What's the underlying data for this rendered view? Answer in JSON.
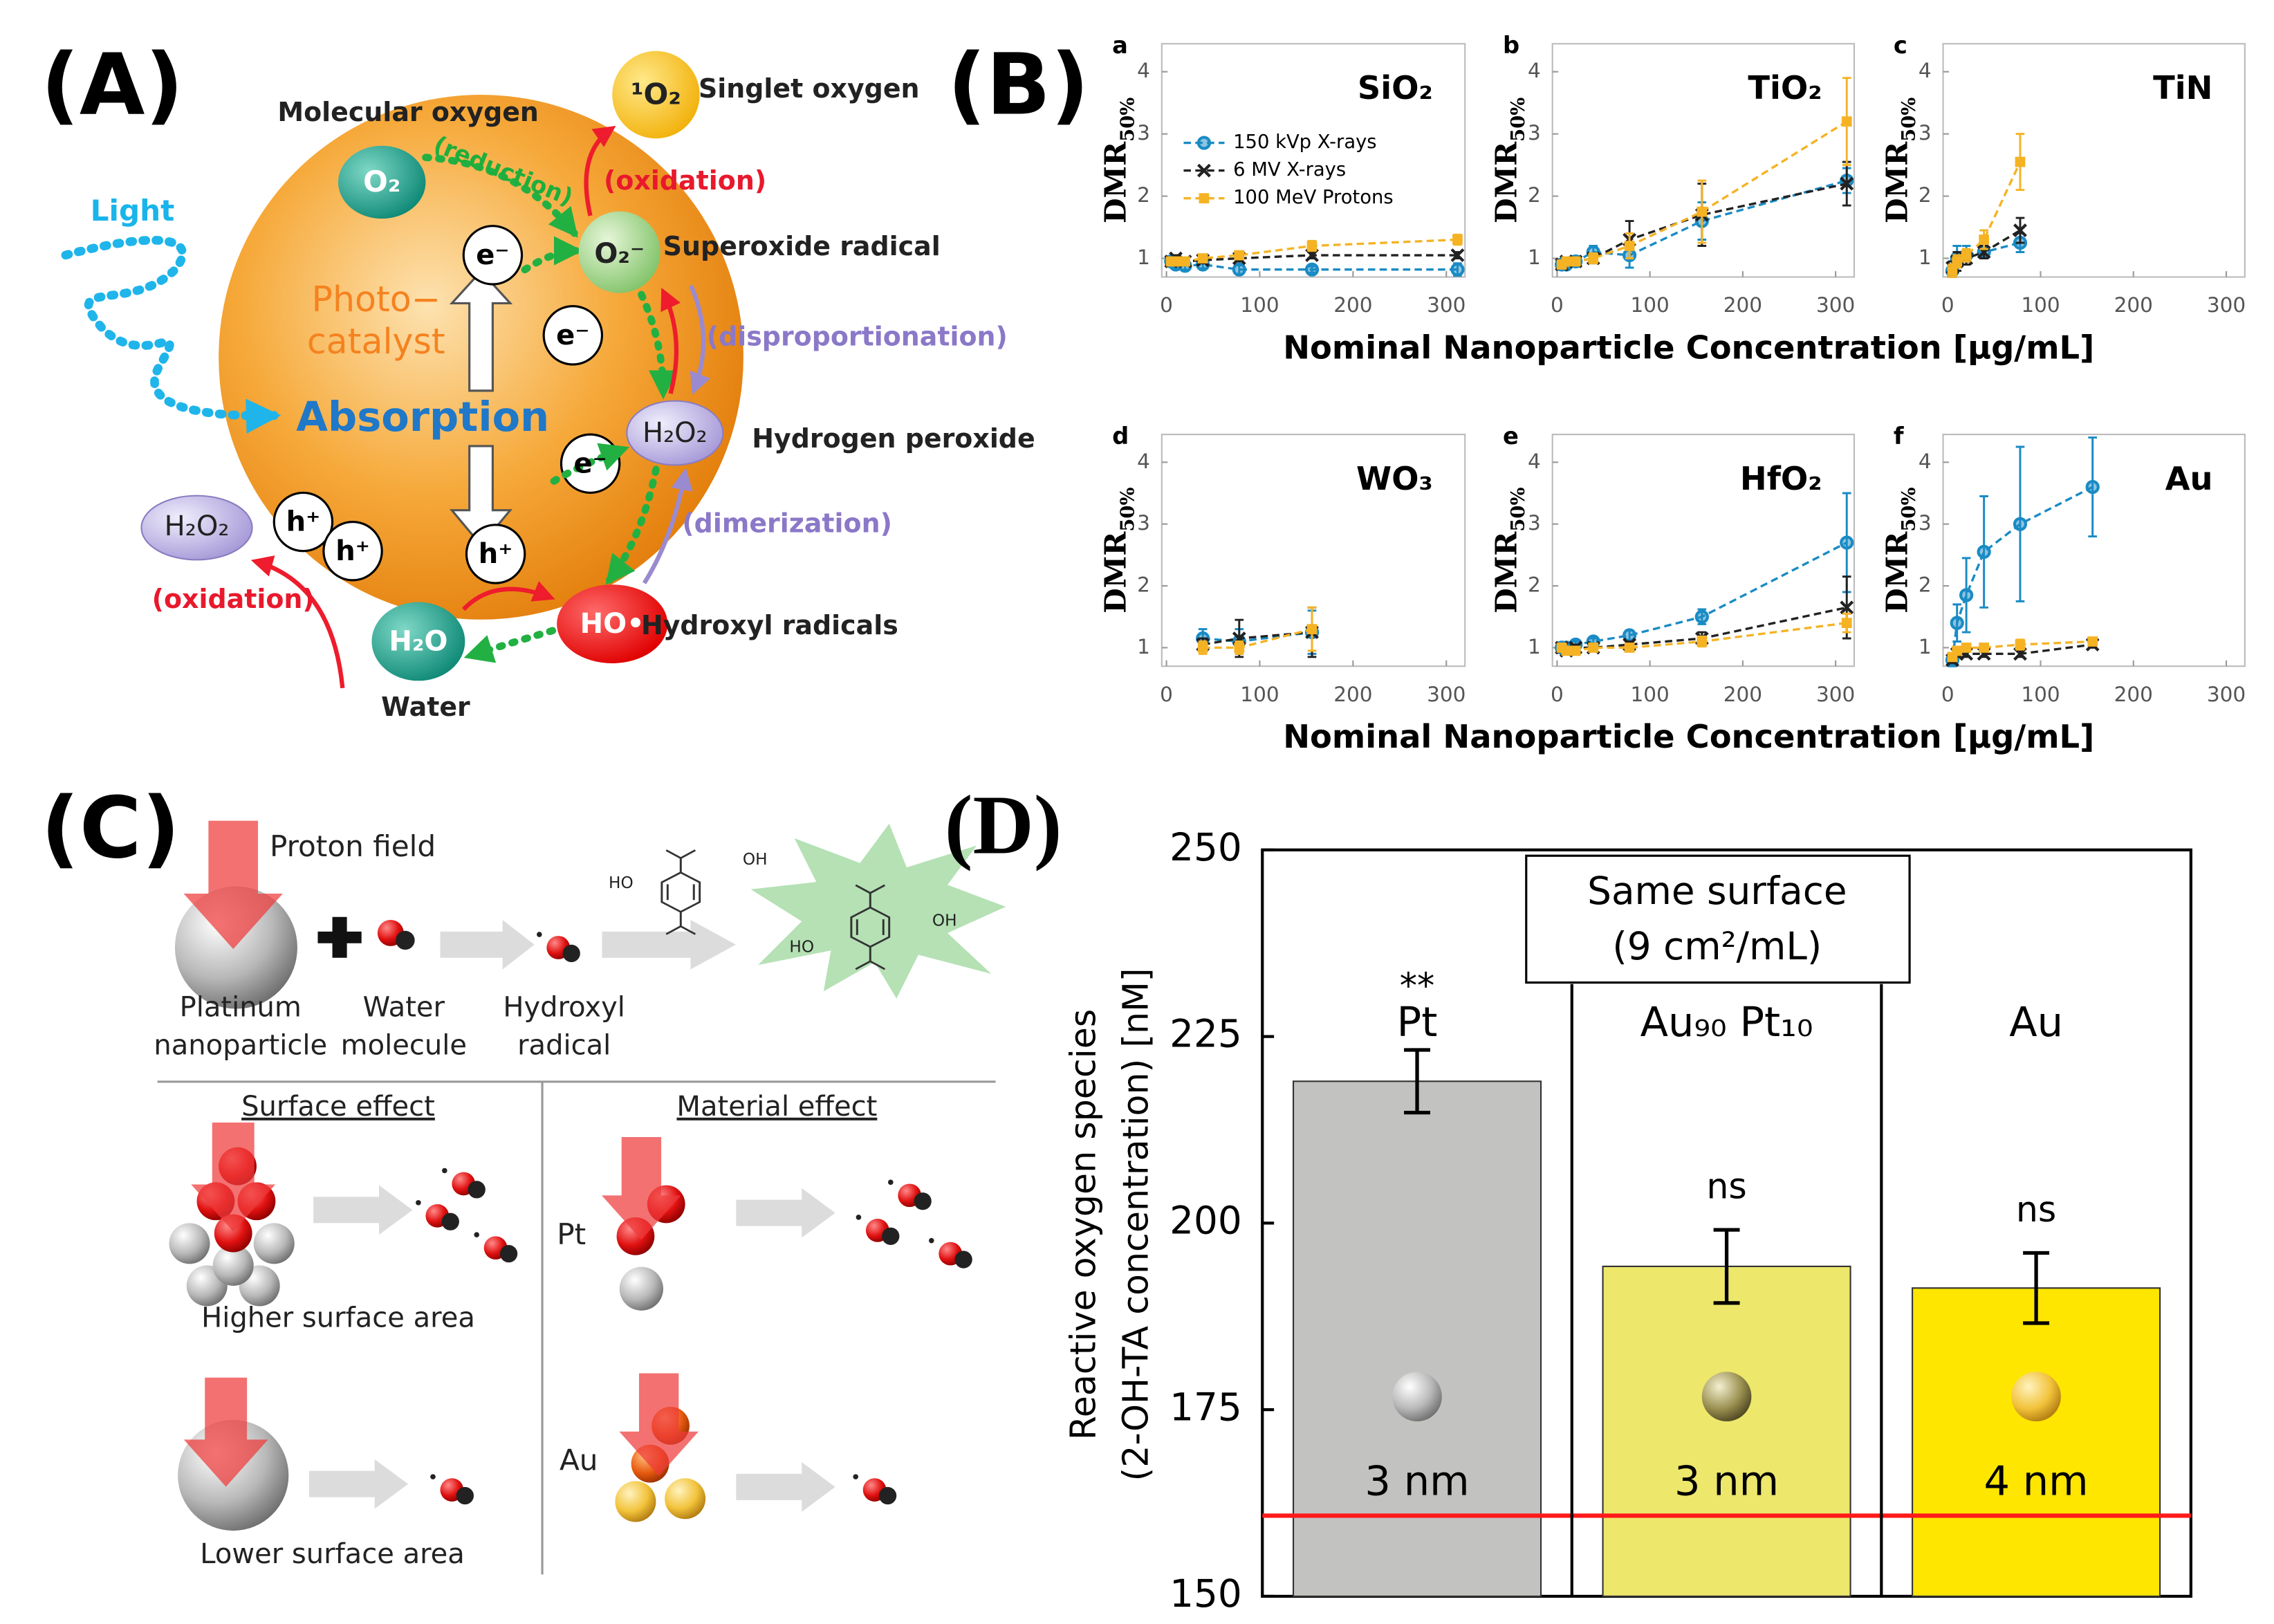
{
  "figure": {
    "panel_a": {
      "label": "(A)",
      "light": "Light",
      "photocatalyst_1": "Photo−",
      "photocatalyst_2": "catalyst",
      "absorption": "Absorption",
      "molecular_oxygen": "Molecular oxygen",
      "o2": "O₂",
      "reduction": "(reduction)",
      "singlet_o2": "¹O₂",
      "singlet_oxygen": "Singlet oxygen",
      "oxidation_1": "(oxidation)",
      "superoxide": "O₂⁻",
      "superoxide_radical": "Superoxide radical",
      "disproportionation": "(disproportionation)",
      "h2o2_1": "H₂O₂",
      "hydrogen_peroxide": "Hydrogen peroxide",
      "dimerization": "(dimerization)",
      "ho": "HO•",
      "hydroxyl_radicals": "Hydroxyl radicals",
      "h2o": "H₂O",
      "water": "Water",
      "h2o2_2": "H₂O₂",
      "oxidation_2": "(oxidation)",
      "electrons": [
        "e⁻",
        "e⁻",
        "e⁻"
      ],
      "holes": [
        "h⁺",
        "h⁺",
        "h⁺"
      ]
    },
    "panel_b": {
      "label": "(B)"
    },
    "panel_c": {
      "label": "(C)",
      "proton_field": "Proton field",
      "platinum_nanoparticle": [
        "Platinum",
        "nanoparticle"
      ],
      "water_molecule": [
        "Water",
        "molecule"
      ],
      "hydroxyl_radical": [
        "Hydroxyl",
        "radical"
      ],
      "surface_effect": "Surface effect",
      "material_effect": "Material effect",
      "higher_surface_area": "Higher surface area",
      "lower_surface_area": "Lower surface area",
      "pt": "Pt",
      "au": "Au",
      "ta_labels": [
        "HO",
        "OH"
      ],
      "hta_labels": [
        "HO",
        "OH"
      ]
    }
  },
  "chart_data": [
    {
      "type": "line",
      "panel": "a",
      "title": "SiO₂",
      "y_label": "DMR",
      "y_label_subscript": "50%",
      "xlim": [
        -5,
        320
      ],
      "ylim": [
        0.7,
        4.45
      ],
      "xticks": [
        0,
        100,
        200,
        300
      ],
      "yticks": [
        1,
        2,
        3,
        4
      ],
      "legend": "upper left",
      "series": [
        {
          "name": "150 kVp X-rays",
          "color": "#1a8bc4",
          "marker": "circle",
          "x": [
            5,
            10,
            20,
            39,
            78,
            156,
            312
          ],
          "values": [
            0.95,
            0.9,
            0.88,
            0.9,
            0.82,
            0.82,
            0.82
          ],
          "errors": [
            0.08,
            0.06,
            0.06,
            0.06,
            0.07,
            0.05,
            0.1
          ]
        },
        {
          "name": "6 MV  X-rays",
          "color": "#222222",
          "marker": "cross",
          "x": [
            5,
            10,
            20,
            39,
            78,
            156,
            312
          ],
          "values": [
            0.95,
            1.0,
            0.95,
            0.97,
            1.0,
            1.05,
            1.05
          ],
          "errors": [
            0.06,
            0.05,
            0.05,
            0.05,
            0.05,
            0.05,
            0.05
          ]
        },
        {
          "name": "100 MeV Protons",
          "color": "#f5b324",
          "marker": "square",
          "x": [
            5,
            10,
            20,
            39,
            78,
            156,
            312
          ],
          "values": [
            0.95,
            0.95,
            0.95,
            1.0,
            1.05,
            1.2,
            1.3
          ],
          "errors": [
            0.05,
            0.05,
            0.05,
            0.05,
            0.06,
            0.08,
            0.08
          ]
        }
      ]
    },
    {
      "type": "line",
      "panel": "b",
      "title": "TiO₂",
      "y_label": "DMR",
      "y_label_subscript": "50%",
      "x_label": "Nominal Nanoparticle  Concentration [μg/mL]",
      "xlim": [
        -5,
        320
      ],
      "ylim": [
        0.7,
        4.45
      ],
      "xticks": [
        0,
        100,
        200,
        300
      ],
      "yticks": [
        1,
        2,
        3,
        4
      ],
      "series": [
        {
          "color": "#1a8bc4",
          "marker": "circle",
          "x": [
            5,
            10,
            20,
            39,
            78,
            156,
            312
          ],
          "values": [
            0.9,
            0.9,
            0.95,
            1.1,
            1.05,
            1.6,
            2.25
          ],
          "errors": [
            0.08,
            0.06,
            0.08,
            0.1,
            0.2,
            0.3,
            0.2
          ]
        },
        {
          "color": "#222222",
          "marker": "cross",
          "x": [
            5,
            10,
            20,
            39,
            78,
            156,
            312
          ],
          "values": [
            0.9,
            0.95,
            0.95,
            1.0,
            1.3,
            1.7,
            2.2
          ],
          "errors": [
            0.05,
            0.05,
            0.05,
            0.08,
            0.3,
            0.5,
            0.35
          ]
        },
        {
          "color": "#f5b324",
          "marker": "square",
          "x": [
            5,
            10,
            20,
            39,
            78,
            156,
            312
          ],
          "values": [
            0.9,
            0.95,
            0.95,
            1.0,
            1.2,
            1.75,
            3.2
          ],
          "errors": [
            0.05,
            0.05,
            0.05,
            0.08,
            0.2,
            0.5,
            0.7
          ]
        }
      ]
    },
    {
      "type": "line",
      "panel": "c",
      "title": "TiN",
      "y_label": "DMR",
      "y_label_subscript": "50%",
      "xlim": [
        -5,
        320
      ],
      "ylim": [
        0.7,
        4.45
      ],
      "xticks": [
        0,
        100,
        200,
        300
      ],
      "yticks": [
        1,
        2,
        3,
        4
      ],
      "series": [
        {
          "color": "#1a8bc4",
          "marker": "circle",
          "x": [
            5,
            10,
            20,
            39,
            78
          ],
          "values": [
            0.8,
            1.0,
            1.05,
            1.1,
            1.25
          ],
          "errors": [
            0.1,
            0.2,
            0.15,
            0.1,
            0.15
          ]
        },
        {
          "color": "#222222",
          "marker": "cross",
          "x": [
            5,
            10,
            20,
            39,
            78
          ],
          "values": [
            0.85,
            0.95,
            1.0,
            1.1,
            1.45
          ],
          "errors": [
            0.1,
            0.15,
            0.1,
            0.1,
            0.2
          ]
        },
        {
          "color": "#f5b324",
          "marker": "square",
          "x": [
            5,
            10,
            20,
            39,
            78
          ],
          "values": [
            0.8,
            0.95,
            1.05,
            1.3,
            2.55
          ],
          "errors": [
            0.1,
            0.1,
            0.1,
            0.15,
            0.45
          ]
        }
      ]
    },
    {
      "type": "line",
      "panel": "d",
      "title": "WO₃",
      "y_label": "DMR",
      "y_label_subscript": "50%",
      "xlim": [
        -5,
        320
      ],
      "ylim": [
        0.7,
        4.45
      ],
      "xticks": [
        0,
        100,
        200,
        300
      ],
      "yticks": [
        1,
        2,
        3,
        4
      ],
      "series": [
        {
          "color": "#1a8bc4",
          "marker": "circle",
          "x": [
            39,
            78,
            156
          ],
          "values": [
            1.15,
            1.1,
            1.25
          ],
          "errors": [
            0.15,
            0.2,
            0.35
          ]
        },
        {
          "color": "#222222",
          "marker": "cross",
          "x": [
            39,
            78,
            156
          ],
          "values": [
            1.05,
            1.15,
            1.25
          ],
          "errors": [
            0.1,
            0.3,
            0.4
          ]
        },
        {
          "color": "#f5b324",
          "marker": "square",
          "x": [
            39,
            78,
            156
          ],
          "values": [
            1.0,
            1.0,
            1.3
          ],
          "errors": [
            0.1,
            0.1,
            0.35
          ]
        }
      ]
    },
    {
      "type": "line",
      "panel": "e",
      "title": "HfO₂",
      "y_label": "DMR",
      "y_label_subscript": "50%",
      "x_label": "Nominal Nanoparticle  Concentration [μg/mL]",
      "xlim": [
        -5,
        320
      ],
      "ylim": [
        0.7,
        4.45
      ],
      "xticks": [
        0,
        100,
        200,
        300
      ],
      "yticks": [
        1,
        2,
        3,
        4
      ],
      "series": [
        {
          "color": "#1a8bc4",
          "marker": "circle",
          "x": [
            5,
            10,
            20,
            39,
            78,
            156,
            312
          ],
          "values": [
            1.0,
            1.0,
            1.05,
            1.1,
            1.2,
            1.5,
            2.7
          ],
          "errors": [
            0.05,
            0.05,
            0.05,
            0.05,
            0.08,
            0.12,
            0.8
          ]
        },
        {
          "color": "#222222",
          "marker": "cross",
          "x": [
            5,
            10,
            20,
            39,
            78,
            156,
            312
          ],
          "values": [
            1.0,
            0.95,
            1.0,
            1.0,
            1.05,
            1.15,
            1.65
          ],
          "errors": [
            0.05,
            0.05,
            0.05,
            0.05,
            0.05,
            0.1,
            0.5
          ]
        },
        {
          "color": "#f5b324",
          "marker": "square",
          "x": [
            5,
            10,
            20,
            39,
            78,
            156,
            312
          ],
          "values": [
            1.0,
            0.95,
            0.95,
            1.0,
            1.0,
            1.1,
            1.4
          ],
          "errors": [
            0.05,
            0.05,
            0.05,
            0.05,
            0.05,
            0.08,
            0.15
          ]
        }
      ]
    },
    {
      "type": "line",
      "panel": "f",
      "title": "Au",
      "y_label": "DMR",
      "y_label_subscript": "50%",
      "xlim": [
        -5,
        320
      ],
      "ylim": [
        0.7,
        4.45
      ],
      "xticks": [
        0,
        100,
        200,
        300
      ],
      "yticks": [
        1,
        2,
        3,
        4
      ],
      "series": [
        {
          "color": "#1a8bc4",
          "marker": "circle",
          "x": [
            5,
            10,
            20,
            39,
            78,
            156
          ],
          "values": [
            0.8,
            1.4,
            1.85,
            2.55,
            3.0,
            3.6
          ],
          "errors": [
            0.1,
            0.3,
            0.6,
            0.9,
            1.25,
            0.8
          ]
        },
        {
          "color": "#222222",
          "marker": "cross",
          "x": [
            5,
            10,
            20,
            39,
            78,
            156
          ],
          "values": [
            0.8,
            0.9,
            0.9,
            0.9,
            0.9,
            1.05
          ],
          "errors": [
            0.05,
            0.05,
            0.05,
            0.05,
            0.05,
            0.05
          ]
        },
        {
          "color": "#f5b324",
          "marker": "square",
          "x": [
            5,
            10,
            20,
            39,
            78,
            156
          ],
          "values": [
            0.85,
            0.95,
            1.0,
            1.0,
            1.05,
            1.1
          ],
          "errors": [
            0.05,
            0.05,
            0.05,
            0.05,
            0.08,
            0.05
          ]
        }
      ]
    },
    {
      "type": "bar",
      "panel_label": "(D)",
      "y_label": [
        "Reactive oxygen species",
        "(2-OH-TA concentration) [nM]"
      ],
      "categories": [
        "Pt",
        "Au₉₀ Pt₁₀",
        "Au"
      ],
      "values": [
        219,
        194.2,
        191.3
      ],
      "errors": [
        4.2,
        4.9,
        4.7
      ],
      "colors": [
        "#c2c2c0",
        "#ede76c",
        "#ffe600"
      ],
      "significance": [
        "**",
        "ns",
        "ns"
      ],
      "bar_labels": [
        "3 nm",
        "3 nm",
        "4 nm"
      ],
      "ylim": [
        150,
        250
      ],
      "yticks": [
        150,
        175,
        200,
        225,
        250
      ],
      "reference_line": {
        "value": 160.8,
        "color": "#ff1a1a"
      },
      "annotation": [
        "Same surface",
        "(9 cm²/mL)"
      ]
    }
  ]
}
